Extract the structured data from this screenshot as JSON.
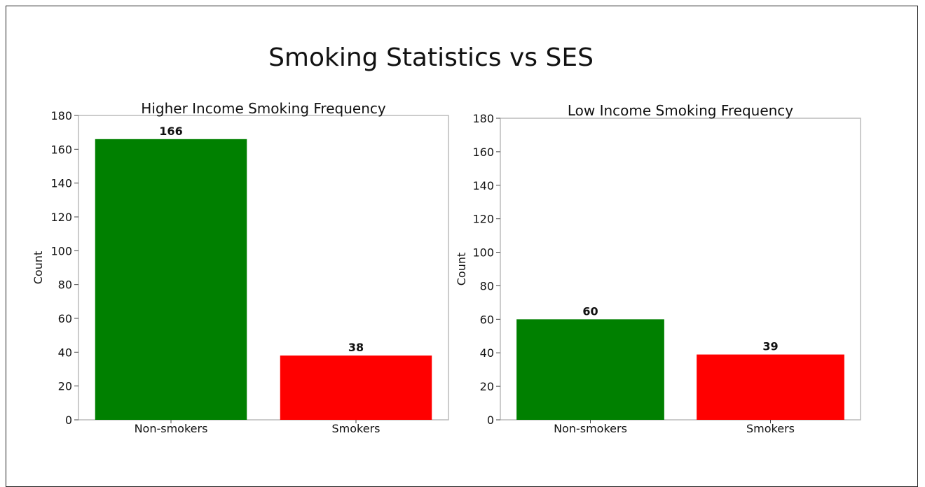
{
  "page": {
    "title": "Smoking Statistics vs SES"
  },
  "chart_data": [
    {
      "type": "bar",
      "title": "Higher Income Smoking Frequency",
      "xlabel": "",
      "ylabel": "Count",
      "categories": [
        "Non-smokers",
        "Smokers"
      ],
      "values": [
        166,
        38
      ],
      "colors": [
        "#008000",
        "#ff0000"
      ],
      "ylim": [
        0,
        180
      ],
      "yticks": [
        0,
        20,
        40,
        60,
        80,
        100,
        120,
        140,
        160,
        180
      ],
      "data_labels": [
        "166",
        "38"
      ],
      "grid": false,
      "legend": "none"
    },
    {
      "type": "bar",
      "title": "Low Income Smoking Frequency",
      "xlabel": "",
      "ylabel": "Count",
      "categories": [
        "Non-smokers",
        "Smokers"
      ],
      "values": [
        60,
        39
      ],
      "colors": [
        "#008000",
        "#ff0000"
      ],
      "ylim": [
        0,
        180
      ],
      "yticks": [
        0,
        20,
        40,
        60,
        80,
        100,
        120,
        140,
        160,
        180
      ],
      "data_labels": [
        "60",
        "39"
      ],
      "grid": false,
      "legend": "none"
    }
  ]
}
